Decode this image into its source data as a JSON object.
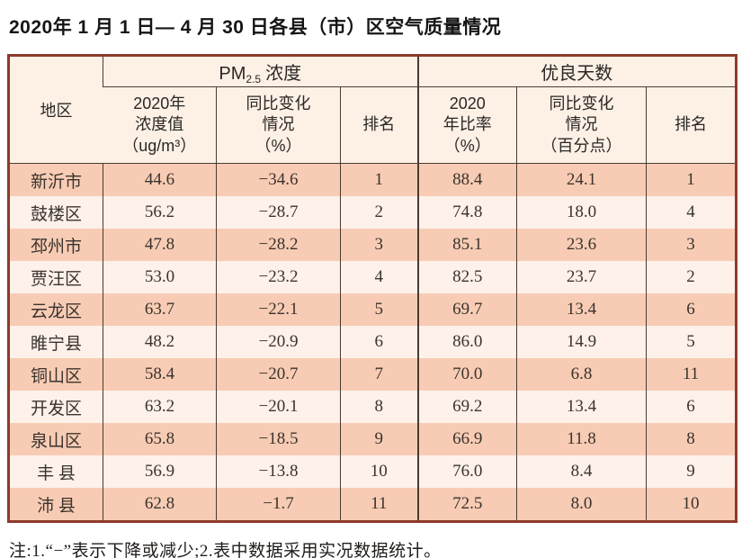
{
  "title": "2020年 1 月 1 日— 4 月 30 日各县（市）区空气质量情况",
  "note": "注:1.“−”表示下降或减少;2.表中数据采用实况数据统计。",
  "colors": {
    "row_salmon": "#f8ccb4",
    "row_light": "#fdf1ea",
    "header_bg": "#fdf1e6",
    "border_outer": "#8e3a2a",
    "border_inner": "#4a3a33"
  },
  "table": {
    "region_header": "地区",
    "pm25_group": {
      "prefix": "PM",
      "sub": "2.5",
      "suffix": "浓度"
    },
    "good_days_group": "优良天数",
    "pm25_columns": [
      "2020年\n浓度值\n（ug/m³）",
      "同比变化\n情况\n（%）",
      "排名"
    ],
    "good_days_columns": [
      "2020\n年比率\n（%）",
      "同比变化\n情况\n（百分点）",
      "排名"
    ],
    "rows": [
      {
        "region": "新沂市",
        "pm25_value": "44.6",
        "pm25_change": "−34.6",
        "pm25_rank": "1",
        "good_rate": "88.4",
        "good_change": "24.1",
        "good_rank": "1"
      },
      {
        "region": "鼓楼区",
        "pm25_value": "56.2",
        "pm25_change": "−28.7",
        "pm25_rank": "2",
        "good_rate": "74.8",
        "good_change": "18.0",
        "good_rank": "4"
      },
      {
        "region": "邳州市",
        "pm25_value": "47.8",
        "pm25_change": "−28.2",
        "pm25_rank": "3",
        "good_rate": "85.1",
        "good_change": "23.6",
        "good_rank": "3"
      },
      {
        "region": "贾汪区",
        "pm25_value": "53.0",
        "pm25_change": "−23.2",
        "pm25_rank": "4",
        "good_rate": "82.5",
        "good_change": "23.7",
        "good_rank": "2"
      },
      {
        "region": "云龙区",
        "pm25_value": "63.7",
        "pm25_change": "−22.1",
        "pm25_rank": "5",
        "good_rate": "69.7",
        "good_change": "13.4",
        "good_rank": "6"
      },
      {
        "region": "睢宁县",
        "pm25_value": "48.2",
        "pm25_change": "−20.9",
        "pm25_rank": "6",
        "good_rate": "86.0",
        "good_change": "14.9",
        "good_rank": "5"
      },
      {
        "region": "铜山区",
        "pm25_value": "58.4",
        "pm25_change": "−20.7",
        "pm25_rank": "7",
        "good_rate": "70.0",
        "good_change": "6.8",
        "good_rank": "11"
      },
      {
        "region": "开发区",
        "pm25_value": "63.2",
        "pm25_change": "−20.1",
        "pm25_rank": "8",
        "good_rate": "69.2",
        "good_change": "13.4",
        "good_rank": "6"
      },
      {
        "region": "泉山区",
        "pm25_value": "65.8",
        "pm25_change": "−18.5",
        "pm25_rank": "9",
        "good_rate": "66.9",
        "good_change": "11.8",
        "good_rank": "8"
      },
      {
        "region": "丰 县",
        "pm25_value": "56.9",
        "pm25_change": "−13.8",
        "pm25_rank": "10",
        "good_rate": "76.0",
        "good_change": "8.4",
        "good_rank": "9"
      },
      {
        "region": "沛 县",
        "pm25_value": "62.8",
        "pm25_change": "−1.7",
        "pm25_rank": "11",
        "good_rate": "72.5",
        "good_change": "8.0",
        "good_rank": "10"
      }
    ]
  }
}
